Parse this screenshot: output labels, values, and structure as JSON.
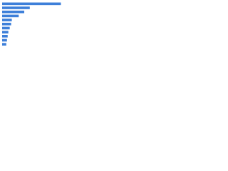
{
  "chart_data": {
    "type": "bar",
    "orientation": "horizontal",
    "categories": [
      null,
      null,
      null,
      null,
      null,
      null,
      null,
      null,
      null,
      null,
      null
    ],
    "values": [
      85,
      40,
      32,
      24,
      14,
      13,
      11,
      9,
      8,
      7,
      6
    ],
    "color": "#3d7fd9",
    "xlim": [
      0,
      100
    ]
  }
}
